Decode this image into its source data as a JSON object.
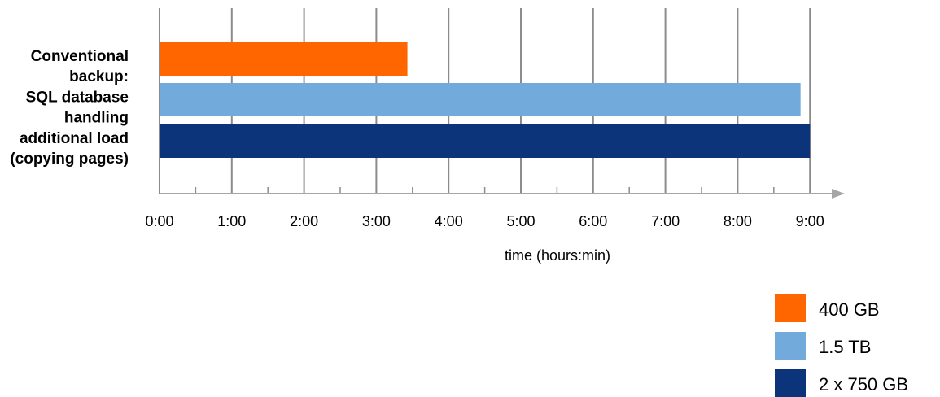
{
  "chart_data": {
    "type": "bar",
    "orientation": "horizontal",
    "category_label_lines": [
      "Conventional",
      "backup:",
      "SQL database",
      "handling",
      "additional load",
      "(copying pages)"
    ],
    "series": [
      {
        "name": "400 GB",
        "value": "3:26",
        "value_hours": 3.43,
        "color": "#ff6600"
      },
      {
        "name": "1.5 TB",
        "value": "8:52",
        "value_hours": 8.87,
        "color": "#73aadc"
      },
      {
        "name": "2 x 750 GB",
        "value": "9:00",
        "value_hours": 9.0,
        "color": "#0c347b"
      }
    ],
    "xlabel": "time (hours:min)",
    "ylabel": "",
    "x_ticks": [
      "0:00",
      "1:00",
      "2:00",
      "3:00",
      "4:00",
      "5:00",
      "6:00",
      "7:00",
      "8:00",
      "9:00"
    ],
    "xlim_hours": [
      0,
      9
    ],
    "grid": true,
    "legend_position": "bottom-right",
    "colors": {
      "gridline": "#8c8c8c",
      "axis": "#a6a6a6"
    }
  }
}
